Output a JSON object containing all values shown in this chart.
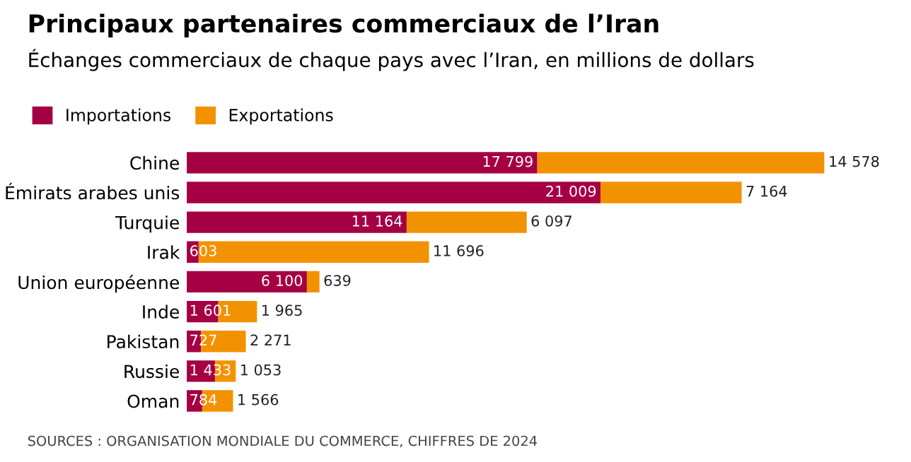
{
  "chart_data": {
    "type": "bar",
    "orientation": "horizontal",
    "stacked": true,
    "title": "Principaux partenaires commerciaux de l’Iran",
    "subtitle": "Échanges commerciaux de chaque pays avec l’Iran, en millions de dollars",
    "categories": [
      "Chine",
      "Émirats arabes unis",
      "Turquie",
      "Irak",
      "Union européenne",
      "Inde",
      "Pakistan",
      "Russie",
      "Oman"
    ],
    "series": [
      {
        "name": "Importations",
        "color": "#a50044",
        "values": [
          17799,
          21009,
          11164,
          603,
          6100,
          1601,
          727,
          1433,
          784
        ],
        "value_labels": [
          "17 799",
          "21 009",
          "11 164",
          "603",
          "6 100",
          "1 601",
          "727",
          "1 433",
          "784"
        ]
      },
      {
        "name": "Exportations",
        "color": "#f39200",
        "values": [
          14578,
          7164,
          6097,
          11696,
          639,
          1965,
          2271,
          1053,
          1566
        ],
        "value_labels": [
          "14 578",
          "7 164",
          "6 097",
          "11 696",
          "639",
          "1 965",
          "2 271",
          "1 053",
          "1 566"
        ]
      }
    ],
    "legend": "top left",
    "grid": false,
    "annotations": [
      "SOURCES : ORGANISATION MONDIALE DU COMMERCE, CHIFFRES DE 2024"
    ]
  }
}
